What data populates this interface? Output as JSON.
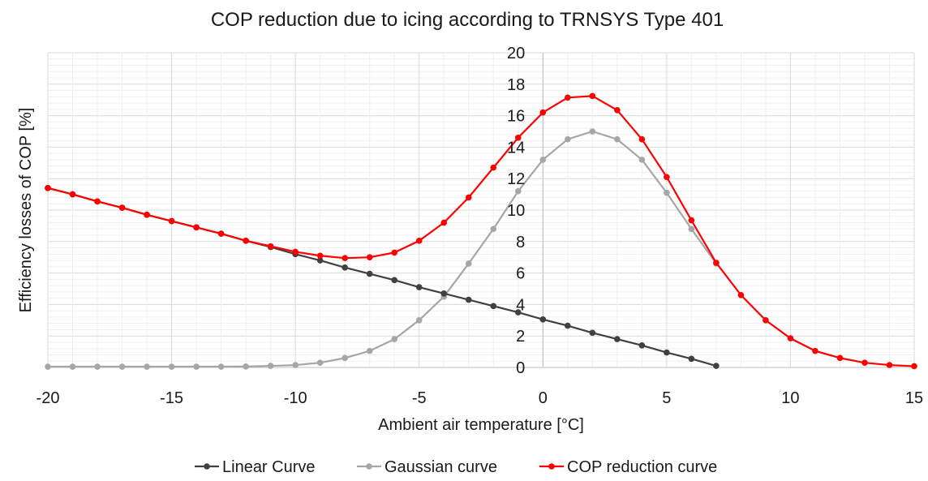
{
  "chart_data": {
    "type": "line",
    "title": "COP reduction due to icing according to TRNSYS Type 401",
    "xlabel": "Ambient air temperature [°C]",
    "ylabel": "Efficiency losses of COP [%]",
    "xlim": [
      -20,
      15
    ],
    "ylim": [
      0,
      20
    ],
    "x_ticks": [
      "-20",
      "-15",
      "-10",
      "-5",
      "0",
      "5",
      "10",
      "15"
    ],
    "y_ticks": [
      "0",
      "2",
      "4",
      "6",
      "8",
      "10",
      "12",
      "14",
      "16",
      "18",
      "20"
    ],
    "grid": true,
    "legend_position": "bottom",
    "series": [
      {
        "name": "Linear Curve",
        "color": "#404040",
        "x": [
          -20,
          -19,
          -18,
          -17,
          -16,
          -15,
          -14,
          -13,
          -12,
          -11,
          -10,
          -9,
          -8,
          -7,
          -6,
          -5,
          -4,
          -3,
          -2,
          -1,
          0,
          1,
          2,
          3,
          4,
          5,
          6,
          7
        ],
        "values": [
          11.4,
          11.0,
          10.55,
          10.15,
          9.7,
          9.3,
          8.9,
          8.5,
          8.05,
          7.65,
          7.2,
          6.8,
          6.35,
          5.95,
          5.55,
          5.1,
          4.7,
          4.3,
          3.9,
          3.5,
          3.05,
          2.65,
          2.2,
          1.8,
          1.4,
          0.95,
          0.55,
          0.1
        ]
      },
      {
        "name": "Gaussian curve",
        "color": "#a6a6a6",
        "x": [
          -20,
          -19,
          -18,
          -17,
          -16,
          -15,
          -14,
          -13,
          -12,
          -11,
          -10,
          -9,
          -8,
          -7,
          -6,
          -5,
          -4,
          -3,
          -2,
          -1,
          0,
          1,
          2,
          3,
          4,
          5,
          6,
          7
        ],
        "values": [
          0.05,
          0.05,
          0.05,
          0.05,
          0.05,
          0.05,
          0.05,
          0.05,
          0.06,
          0.1,
          0.15,
          0.3,
          0.6,
          1.05,
          1.8,
          3.0,
          4.5,
          6.6,
          8.8,
          11.2,
          13.2,
          14.5,
          15.0,
          14.5,
          13.2,
          11.1,
          8.8,
          6.6
        ]
      },
      {
        "name": "COP reduction curve",
        "color": "#ff0000",
        "x": [
          -20,
          -19,
          -18,
          -17,
          -16,
          -15,
          -14,
          -13,
          -12,
          -11,
          -10,
          -9,
          -8,
          -7,
          -6,
          -5,
          -4,
          -3,
          -2,
          -1,
          0,
          1,
          2,
          3,
          4,
          5,
          6,
          7,
          8,
          9,
          10,
          11,
          12,
          13,
          14,
          15
        ],
        "values": [
          11.4,
          11.0,
          10.55,
          10.15,
          9.7,
          9.3,
          8.9,
          8.5,
          8.05,
          7.7,
          7.35,
          7.1,
          6.95,
          7.0,
          7.3,
          8.05,
          9.2,
          10.8,
          12.7,
          14.6,
          16.2,
          17.15,
          17.25,
          16.35,
          14.5,
          12.1,
          9.35,
          6.65,
          4.6,
          3.0,
          1.85,
          1.05,
          0.6,
          0.3,
          0.15,
          0.08
        ]
      }
    ]
  }
}
